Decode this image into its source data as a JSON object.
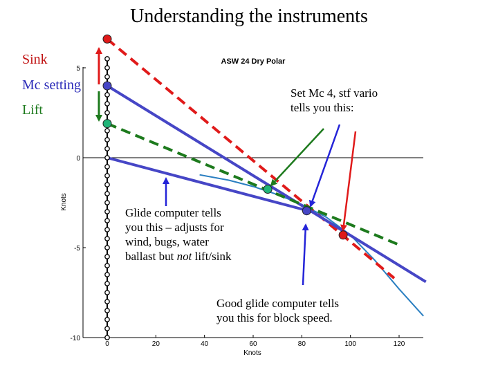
{
  "slide": {
    "title": "Understanding the instruments"
  },
  "legend": {
    "sink": "Sink",
    "mc": "Mc setting",
    "lift": "Lift"
  },
  "chart_data": {
    "type": "line",
    "title": "ASW 24 Dry Polar",
    "xlabel": "Knots",
    "ylabel": "Knots",
    "xlim": [
      0,
      130
    ],
    "ylim": [
      -10,
      5
    ],
    "xticks": [
      0,
      20,
      40,
      60,
      80,
      100,
      120
    ],
    "yticks": [
      5,
      0,
      -5,
      -10
    ],
    "grid": false,
    "series": [
      {
        "type": "curve",
        "color": "#2a7fc1",
        "x": [
          38,
          50,
          60,
          70,
          80,
          90,
          100,
          110,
          120,
          130
        ],
        "y": [
          -0.95,
          -1.25,
          -1.6,
          -2.05,
          -2.6,
          -3.3,
          -4.3,
          -5.7,
          -7.3,
          -8.8
        ]
      },
      {
        "type": "line",
        "color": "#e01a1a",
        "dashed": true,
        "x": [
          0,
          118
        ],
        "y": [
          6.6,
          -6.7
        ]
      },
      {
        "type": "line",
        "color": "#4646c6",
        "dashed": false,
        "x": [
          0,
          131
        ],
        "y": [
          4.0,
          -6.9
        ]
      },
      {
        "type": "line",
        "color": "#1d7a1d",
        "dashed": true,
        "x": [
          0,
          121
        ],
        "y": [
          1.9,
          -4.9
        ]
      },
      {
        "type": "line",
        "color": "#4646c6",
        "dashed": false,
        "x": [
          0,
          84
        ],
        "y": [
          0.0,
          -3.0
        ]
      }
    ],
    "axis_points_y": [
      5.5,
      5,
      4.5,
      4,
      3.5,
      3,
      2.5,
      2,
      1.5,
      1,
      0.5,
      0,
      -0.5,
      -1,
      -1.5,
      -2,
      -2.5,
      -3,
      -3.5,
      -4,
      -4.5,
      -5,
      -5.5,
      -6,
      -6.5,
      -7,
      -7.5,
      -8,
      -8.5,
      -9,
      -9.5,
      -10
    ]
  },
  "colors": {
    "red": "#e01a1a",
    "blue": "#4646c6",
    "green": "#1d7a1d",
    "cyan": "#20b478",
    "curve": "#2a7fc1"
  },
  "annotations": {
    "stf": "Set Mc 4, stf vario\ntells you this:",
    "glide": "Glide computer tells\nyou this – adjusts for\nwind, bugs, water\nballast but not lift/sink",
    "block": "Good glide computer tells\nyou this for block speed."
  }
}
